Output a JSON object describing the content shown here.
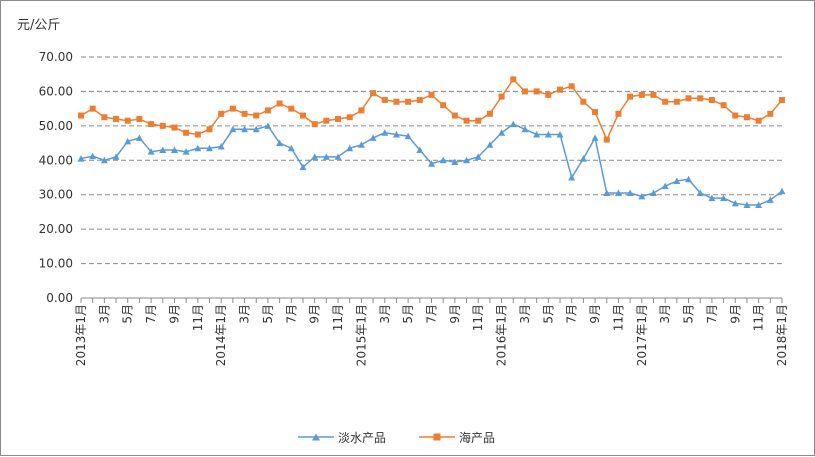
{
  "chart_data": {
    "type": "line",
    "title": "",
    "xlabel": "",
    "ylabel": "元/公斤",
    "ylim": [
      0,
      70
    ],
    "yticks": [
      "0.00",
      "10.00",
      "20.00",
      "30.00",
      "40.00",
      "50.00",
      "60.00",
      "70.00"
    ],
    "grid": "horizontal dashed",
    "legend_position": "bottom",
    "x": [
      "2013-01",
      "2013-02",
      "2013-03",
      "2013-04",
      "2013-05",
      "2013-06",
      "2013-07",
      "2013-08",
      "2013-09",
      "2013-10",
      "2013-11",
      "2013-12",
      "2014-01",
      "2014-02",
      "2014-03",
      "2014-04",
      "2014-05",
      "2014-06",
      "2014-07",
      "2014-08",
      "2014-09",
      "2014-10",
      "2014-11",
      "2014-12",
      "2015-01",
      "2015-02",
      "2015-03",
      "2015-04",
      "2015-05",
      "2015-06",
      "2015-07",
      "2015-08",
      "2015-09",
      "2015-10",
      "2015-11",
      "2015-12",
      "2016-01",
      "2016-02",
      "2016-03",
      "2016-04",
      "2016-05",
      "2016-06",
      "2016-07",
      "2016-08",
      "2016-09",
      "2016-10",
      "2016-11",
      "2016-12",
      "2017-01",
      "2017-02",
      "2017-03",
      "2017-04",
      "2017-05",
      "2017-06",
      "2017-07",
      "2017-08",
      "2017-09",
      "2017-10",
      "2017-11",
      "2017-12",
      "2018-01"
    ],
    "xtick_labels": [
      "2013年1月",
      "3月",
      "5月",
      "7月",
      "9月",
      "11月",
      "2014年1月",
      "3月",
      "5月",
      "7月",
      "9月",
      "11月",
      "2015年1月",
      "3月",
      "5月",
      "7月",
      "9月",
      "11月",
      "2016年1月",
      "3月",
      "5月",
      "7月",
      "9月",
      "11月",
      "2017年1月",
      "3月",
      "5月",
      "7月",
      "9月",
      "11月",
      "2018年1月"
    ],
    "series": [
      {
        "name": "淡水产品",
        "color": "#5b9bd5",
        "marker": "triangle",
        "values": [
          40.5,
          41.2,
          40.0,
          41.0,
          45.5,
          46.5,
          42.5,
          43.0,
          43.0,
          42.5,
          43.5,
          43.5,
          44.0,
          49.0,
          49.0,
          49.0,
          50.0,
          45.0,
          43.5,
          38.0,
          41.0,
          41.0,
          41.0,
          43.5,
          44.5,
          46.5,
          48.0,
          47.5,
          47.0,
          43.0,
          39.0,
          40.0,
          39.5,
          40.0,
          41.0,
          44.5,
          48.0,
          50.5,
          49.0,
          47.5,
          47.5,
          47.5,
          35.0,
          40.5,
          46.5,
          30.5,
          30.5,
          30.5,
          29.5,
          30.5,
          32.5,
          34.0,
          34.5,
          30.5,
          29.0,
          29.0,
          27.5,
          27.0,
          27.0,
          28.5,
          31.0
        ]
      },
      {
        "name": "海产品",
        "color": "#ed7d31",
        "marker": "square",
        "values": [
          53.0,
          55.0,
          52.5,
          52.0,
          51.5,
          52.0,
          50.5,
          50.0,
          49.5,
          48.0,
          47.5,
          49.0,
          53.5,
          55.0,
          53.5,
          53.0,
          54.5,
          56.5,
          55.0,
          53.0,
          50.5,
          51.5,
          52.0,
          52.5,
          54.5,
          59.5,
          57.5,
          57.0,
          57.0,
          57.5,
          59.0,
          56.0,
          53.0,
          51.5,
          51.5,
          53.5,
          58.5,
          63.5,
          60.0,
          60.0,
          59.0,
          60.5,
          61.5,
          57.0,
          54.0,
          46.0,
          53.5,
          58.5,
          59.0,
          59.0,
          57.0,
          57.0,
          58.0,
          58.0,
          57.5,
          56.0,
          53.0,
          52.5,
          51.5,
          53.5,
          57.5
        ]
      }
    ]
  }
}
